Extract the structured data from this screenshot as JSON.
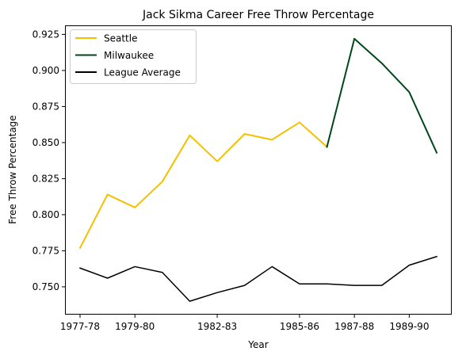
{
  "chart_data": {
    "type": "line",
    "title": "Jack Sikma Career Free Throw Percentage",
    "xlabel": "Year",
    "ylabel": "Free Throw Percentage",
    "x": [
      "1977-78",
      "1978-79",
      "1979-80",
      "1980-81",
      "1981-82",
      "1982-83",
      "1983-84",
      "1984-85",
      "1985-86",
      "1986-87",
      "1987-88",
      "1988-89",
      "1989-90",
      "1990-91"
    ],
    "xticks": [
      "1977-78",
      "1979-80",
      "1982-83",
      "1985-86",
      "1987-88",
      "1989-90"
    ],
    "xtick_positions": [
      "1977-78",
      "1979-80",
      "1982-83",
      "1985-86",
      "1987-88",
      "1989-90"
    ],
    "yticks": [
      "0.750",
      "0.775",
      "0.800",
      "0.825",
      "0.850",
      "0.875",
      "0.900",
      "0.925"
    ],
    "ylim": [
      0.731,
      0.931
    ],
    "grid": false,
    "legend_position": "top-left",
    "series": [
      {
        "name": "Seattle",
        "color": "#f5c000",
        "x": [
          "1977-78",
          "1978-79",
          "1979-80",
          "1980-81",
          "1981-82",
          "1982-83",
          "1983-84",
          "1984-85",
          "1985-86",
          "1986-87"
        ],
        "values": [
          0.777,
          0.814,
          0.805,
          0.823,
          0.855,
          0.837,
          0.856,
          0.852,
          0.864,
          0.847
        ]
      },
      {
        "name": "Milwaukee",
        "color": "#00471b",
        "x": [
          "1986-87",
          "1987-88",
          "1988-89",
          "1989-90",
          "1990-91"
        ],
        "values": [
          0.847,
          0.922,
          0.905,
          0.885,
          0.843
        ]
      },
      {
        "name": "League Average",
        "color": "#000000",
        "x": [
          "1977-78",
          "1978-79",
          "1979-80",
          "1980-81",
          "1981-82",
          "1982-83",
          "1983-84",
          "1984-85",
          "1985-86",
          "1986-87",
          "1987-88",
          "1988-89",
          "1989-90",
          "1990-91"
        ],
        "values": [
          0.763,
          0.756,
          0.764,
          0.76,
          0.74,
          0.746,
          0.751,
          0.764,
          0.752,
          0.752,
          0.751,
          0.751,
          0.765,
          0.771
        ]
      }
    ]
  }
}
